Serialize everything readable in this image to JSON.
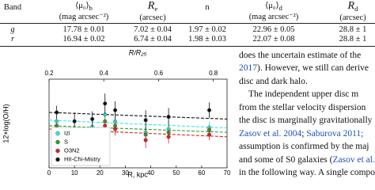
{
  "table": {
    "header": [
      "Band",
      {
        "main": "⟨μ₀⟩",
        "sub": "b",
        "unit": "(mag arcsec⁻²)"
      },
      {
        "main": "R",
        "sub": "e",
        "unit": "(arcsec)"
      },
      "n",
      {
        "main": "⟨μ₀⟩",
        "sub": "d",
        "unit": "(mag arcsec⁻²)"
      },
      {
        "main": "R",
        "sub": "d",
        "unit": "(arcsec)"
      }
    ],
    "rows": [
      [
        "g",
        "17.78 ± 0.01",
        "7.02 ± 0.04",
        "1.97 ± 0.02",
        "22.96 ± 0.05",
        "28.8 ± 1"
      ],
      [
        "r",
        "16.94 ± 0.02",
        "6.74 ± 0.04",
        "1.98 ± 0.03",
        "22.07 ± 0.08",
        "28.8 ± 1"
      ]
    ]
  },
  "chart_data": {
    "type": "scatter",
    "xlabel": "R, kpc",
    "ylabel": "12+log(O/H)",
    "x2label": "R/R₂₅",
    "x": [
      3,
      10,
      17,
      22,
      26,
      38,
      47,
      63
    ],
    "xlim": [
      0,
      70
    ],
    "xticks": [
      0,
      10,
      20,
      30,
      40,
      50,
      60,
      70
    ],
    "x2lim": [
      0.2,
      0.85
    ],
    "x2ticks": [
      0.2,
      0.4,
      0.6,
      0.8
    ],
    "ylim": [
      8.2,
      9.0
    ],
    "legend": "lower left",
    "series": [
      {
        "name": "Izi",
        "color": "#33e6f0",
        "values": [
          8.62,
          8.55,
          8.57,
          8.68,
          8.62,
          8.52,
          8.55,
          8.56
        ],
        "errors": [
          0.06,
          0.07,
          0.06,
          0.08,
          0.07,
          0.08,
          0.07,
          0.06
        ],
        "fit": [
          8.63,
          8.56
        ]
      },
      {
        "name": "S",
        "color": "#2ca02c",
        "values": [
          8.58,
          8.5,
          8.52,
          8.62,
          8.58,
          8.5,
          8.52,
          8.54
        ],
        "errors": [
          0.05,
          0.06,
          0.05,
          0.07,
          0.06,
          0.07,
          0.06,
          0.05
        ],
        "fit": [
          8.58,
          8.52
        ]
      },
      {
        "name": "O3N2",
        "color": "#e02020",
        "values": [
          8.55,
          8.45,
          8.5,
          8.58,
          8.55,
          8.45,
          8.48,
          8.5
        ],
        "errors": [
          0.05,
          0.06,
          0.05,
          0.06,
          0.06,
          0.07,
          0.06,
          0.05
        ],
        "fit": [
          8.55,
          8.48
        ]
      },
      {
        "name": "HII-Chi-Mistry",
        "color": "#111111",
        "values": [
          8.7,
          8.62,
          8.64,
          8.78,
          8.72,
          8.63,
          8.66,
          8.72
        ],
        "errors": [
          0.06,
          0.08,
          0.07,
          0.09,
          0.08,
          0.09,
          0.08,
          0.07
        ],
        "fit": [
          8.7,
          8.64
        ]
      }
    ]
  },
  "text": {
    "lines": [
      "does the uncertain estimate of the",
      {
        "link": "2017",
        "rest": "). However, we still can derive"
      },
      "disc and dark halo.",
      "The independent upper disc m",
      "from the stellar velocity dispersion",
      "the disc is marginally gravitationally",
      {
        "link1": "Zasov et al. 2004",
        "sep": "; ",
        "link2": "Saburova 2011;"
      },
      "assumption is confirmed by the maj",
      {
        "rest": "and some of S0 galaxies (",
        "link": "Zasov et al."
      },
      "in the following way. A single compo"
    ]
  }
}
